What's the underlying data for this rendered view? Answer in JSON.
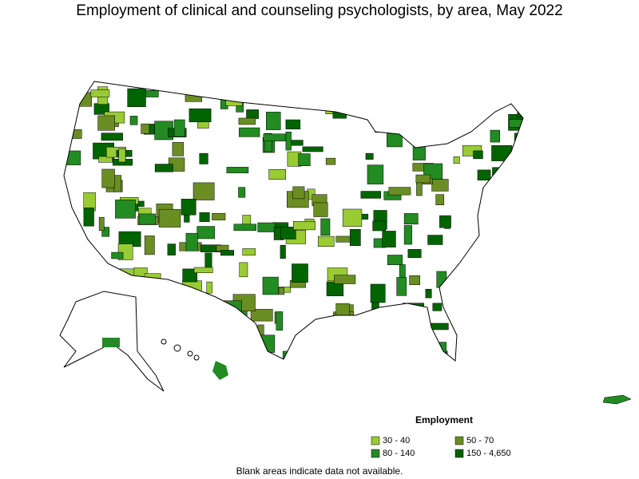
{
  "title": "Employment of clinical and counseling psychologists, by area, May 2022",
  "legend": {
    "title": "Employment",
    "items": [
      {
        "label": "30 - 40",
        "color": "#99cc33"
      },
      {
        "label": "50 - 70",
        "color": "#6b8e23"
      },
      {
        "label": "80 - 140",
        "color": "#228b22"
      },
      {
        "label": "150 - 4,650",
        "color": "#006400"
      }
    ]
  },
  "note": "Blank areas indicate data not available."
}
